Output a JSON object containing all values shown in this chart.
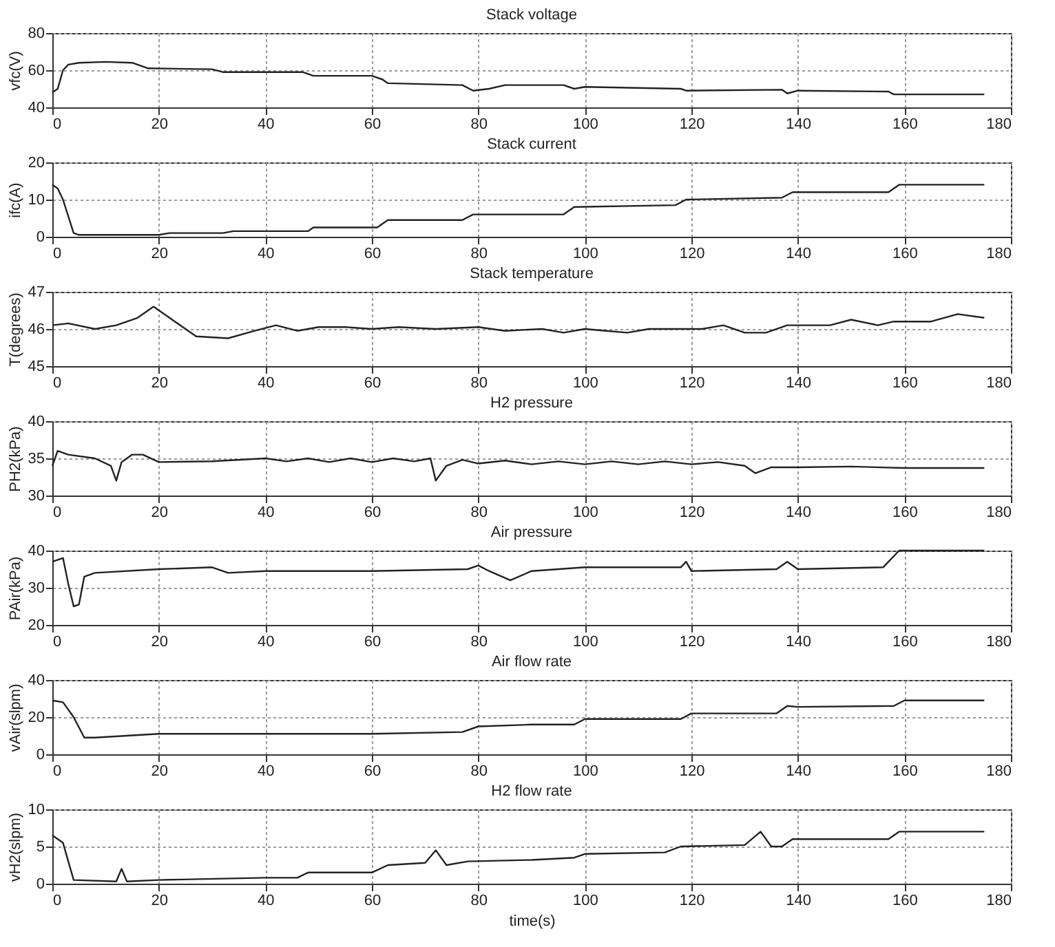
{
  "chart_data": [
    {
      "type": "line",
      "title": "Stack voltage",
      "ylabel": "vfc(V)",
      "xlim": [
        0,
        180
      ],
      "xticks": [
        0,
        20,
        40,
        60,
        80,
        100,
        120,
        140,
        160,
        180
      ],
      "ylim": [
        40,
        80
      ],
      "yticks": [
        40,
        60,
        80
      ],
      "grid": true,
      "x": [
        0,
        1,
        2,
        3,
        5,
        10,
        15,
        17,
        18,
        30,
        32,
        47,
        49,
        60,
        62,
        63,
        77,
        79,
        82,
        85,
        96,
        98,
        100,
        118,
        119,
        137,
        138,
        140,
        157,
        158,
        175
      ],
      "series": [
        {
          "color": "#222222",
          "values": [
            48,
            50,
            60,
            63,
            64,
            64.5,
            64,
            62,
            61,
            60.5,
            59,
            59,
            57,
            57,
            55,
            53,
            52,
            49,
            50,
            52,
            52,
            50,
            51,
            50,
            49,
            49.5,
            47.5,
            49,
            48.5,
            47,
            47
          ]
        }
      ]
    },
    {
      "type": "line",
      "title": "Stack current",
      "ylabel": "ifc(A)",
      "xlim": [
        0,
        180
      ],
      "xticks": [
        0,
        20,
        40,
        60,
        80,
        100,
        120,
        140,
        160,
        180
      ],
      "ylim": [
        0,
        20
      ],
      "yticks": [
        0,
        10,
        20
      ],
      "grid": true,
      "x": [
        0,
        1,
        2,
        4,
        5,
        20,
        22,
        32,
        34,
        48,
        49,
        61,
        63,
        77,
        79,
        96,
        98,
        117,
        119,
        137,
        139,
        157,
        159,
        175
      ],
      "series": [
        {
          "color": "#222222",
          "values": [
            14,
            13,
            10,
            1,
            0.5,
            0.5,
            1,
            1,
            1.5,
            1.5,
            2.5,
            2.5,
            4.5,
            4.5,
            6,
            6,
            8,
            8.5,
            10,
            10.5,
            12,
            12,
            14,
            14
          ]
        }
      ]
    },
    {
      "type": "line",
      "title": "Stack temperature",
      "ylabel": "T(degrees)",
      "xlim": [
        0,
        180
      ],
      "xticks": [
        0,
        20,
        40,
        60,
        80,
        100,
        120,
        140,
        160,
        180
      ],
      "ylim": [
        45,
        47
      ],
      "yticks": [
        45,
        46,
        47
      ],
      "grid": true,
      "x": [
        0,
        3,
        8,
        12,
        16,
        19,
        22,
        27,
        33,
        38,
        42,
        46,
        50,
        55,
        60,
        65,
        72,
        80,
        85,
        92,
        96,
        100,
        104,
        108,
        112,
        118,
        122,
        126,
        130,
        134,
        138,
        142,
        146,
        150,
        155,
        158,
        165,
        170,
        175
      ],
      "series": [
        {
          "color": "#222222",
          "values": [
            46.1,
            46.15,
            46.0,
            46.1,
            46.3,
            46.6,
            46.3,
            45.8,
            45.75,
            45.95,
            46.1,
            45.95,
            46.05,
            46.05,
            46.0,
            46.05,
            46.0,
            46.05,
            45.95,
            46.0,
            45.9,
            46.0,
            45.95,
            45.9,
            46.0,
            46.0,
            46.0,
            46.1,
            45.9,
            45.9,
            46.1,
            46.1,
            46.1,
            46.25,
            46.1,
            46.2,
            46.2,
            46.4,
            46.3
          ]
        }
      ]
    },
    {
      "type": "line",
      "title": "H2 pressure",
      "ylabel": "PH2(kPa)",
      "xlim": [
        0,
        180
      ],
      "xticks": [
        0,
        20,
        40,
        60,
        80,
        100,
        120,
        140,
        160,
        180
      ],
      "ylim": [
        30,
        40
      ],
      "yticks": [
        30,
        35,
        40
      ],
      "grid": true,
      "x": [
        0,
        1,
        3,
        8,
        11,
        12,
        13,
        15,
        17,
        20,
        30,
        40,
        44,
        48,
        52,
        56,
        60,
        64,
        68,
        71,
        72,
        74,
        77,
        80,
        85,
        90,
        95,
        100,
        105,
        110,
        115,
        120,
        125,
        130,
        132,
        135,
        140,
        150,
        160,
        175
      ],
      "series": [
        {
          "color": "#222222",
          "values": [
            34,
            36,
            35.5,
            35,
            34,
            32,
            34.5,
            35.5,
            35.5,
            34.5,
            34.6,
            35,
            34.6,
            35,
            34.5,
            35,
            34.5,
            35,
            34.6,
            35,
            32,
            34,
            34.8,
            34.3,
            34.7,
            34.2,
            34.6,
            34.2,
            34.6,
            34.2,
            34.6,
            34.2,
            34.5,
            34,
            33,
            33.8,
            33.8,
            33.9,
            33.7,
            33.7
          ]
        }
      ]
    },
    {
      "type": "line",
      "title": "Air pressure",
      "ylabel": "PAir(kPa)",
      "xlim": [
        0,
        180
      ],
      "xticks": [
        0,
        20,
        40,
        60,
        80,
        100,
        120,
        140,
        160,
        180
      ],
      "ylim": [
        20,
        40
      ],
      "yticks": [
        20,
        30,
        40
      ],
      "grid": true,
      "x": [
        0,
        2,
        3,
        4,
        5,
        6,
        8,
        20,
        30,
        33,
        40,
        60,
        78,
        80,
        82,
        86,
        90,
        100,
        118,
        119,
        120,
        136,
        138,
        140,
        156,
        159,
        175
      ],
      "series": [
        {
          "color": "#222222",
          "values": [
            37,
            38,
            31,
            25,
            25.5,
            33,
            34,
            35,
            35.5,
            34,
            34.5,
            34.5,
            35,
            36,
            34.5,
            32,
            34.5,
            35.5,
            35.5,
            37,
            34.5,
            35,
            37,
            35,
            35.5,
            40,
            40
          ]
        }
      ]
    },
    {
      "type": "line",
      "title": "Air flow rate",
      "ylabel": "vAir(slpm)",
      "xlim": [
        0,
        180
      ],
      "xticks": [
        0,
        20,
        40,
        60,
        80,
        100,
        120,
        140,
        160,
        180
      ],
      "ylim": [
        0,
        40
      ],
      "yticks": [
        0,
        20,
        40
      ],
      "grid": true,
      "x": [
        0,
        2,
        4,
        6,
        8,
        20,
        40,
        60,
        77,
        80,
        90,
        98,
        100,
        118,
        120,
        136,
        138,
        140,
        158,
        160,
        175
      ],
      "series": [
        {
          "color": "#222222",
          "values": [
            29,
            28,
            20,
            9,
            9,
            11,
            11,
            11,
            12,
            15,
            16,
            16,
            19,
            19,
            22,
            22,
            26,
            25.5,
            26,
            29,
            29
          ]
        }
      ]
    },
    {
      "type": "line",
      "title": "H2 flow rate",
      "ylabel": "vH2(slpm)",
      "xlabel": "time(s)",
      "xlim": [
        0,
        180
      ],
      "xticks": [
        0,
        20,
        40,
        60,
        80,
        100,
        120,
        140,
        160,
        180
      ],
      "ylim": [
        0,
        10
      ],
      "yticks": [
        0,
        5,
        10
      ],
      "grid": true,
      "x": [
        0,
        2,
        4,
        12,
        13,
        14,
        20,
        40,
        46,
        48,
        60,
        63,
        70,
        72,
        74,
        78,
        90,
        98,
        100,
        115,
        118,
        130,
        133,
        135,
        137,
        139,
        157,
        159,
        175
      ],
      "series": [
        {
          "color": "#222222",
          "values": [
            6.5,
            5.5,
            0.5,
            0.3,
            2,
            0.3,
            0.5,
            0.8,
            0.8,
            1.5,
            1.5,
            2.5,
            2.8,
            4.5,
            2.5,
            3,
            3.2,
            3.5,
            4,
            4.2,
            5,
            5.2,
            7,
            5,
            5,
            6,
            6,
            7,
            7
          ]
        }
      ]
    }
  ]
}
